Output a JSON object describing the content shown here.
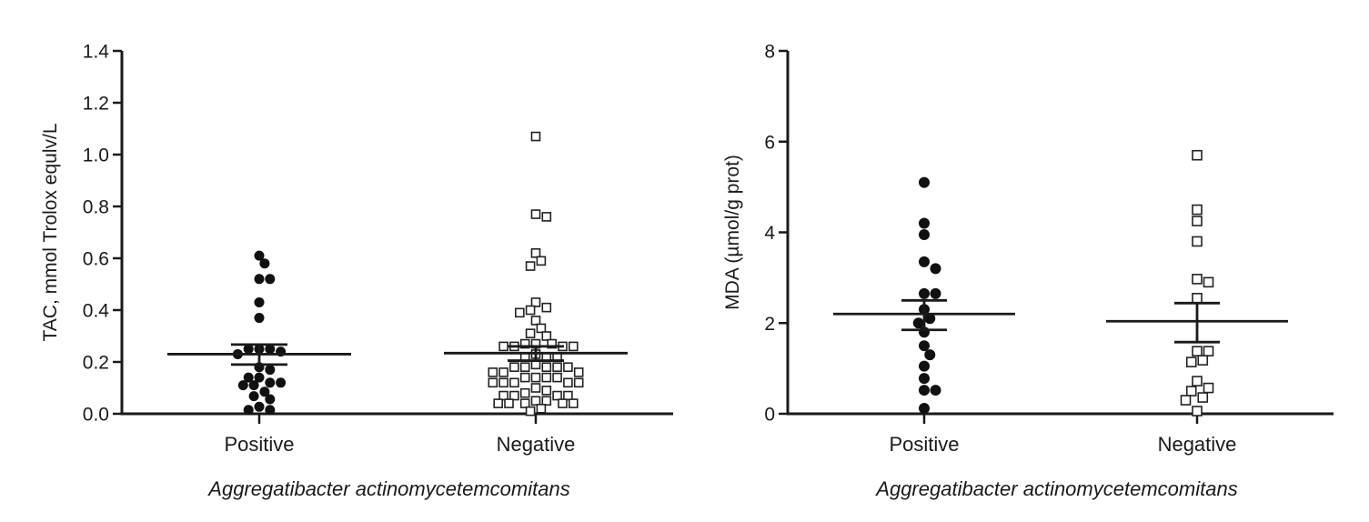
{
  "chart_data": [
    {
      "type": "scatter",
      "title": "",
      "xlabel": "Aggregatibacter actinomycetemcomitans",
      "ylabel": "TAC, mmol Trolox equlv/L",
      "ylim": [
        0,
        1.4
      ],
      "yticks": [
        "0.0",
        "0.2",
        "0.4",
        "0.6",
        "0.8",
        "1.0",
        "1.2",
        "1.4"
      ],
      "ytick_values": [
        0,
        0.2,
        0.4,
        0.6,
        0.8,
        1.0,
        1.2,
        1.4
      ],
      "categories": [
        "Positive",
        "Negative"
      ],
      "grid": false,
      "series": [
        {
          "name": "Positive",
          "marker": "filled-circle",
          "color": "#111111",
          "mean": 0.23,
          "sem_upper": 0.267,
          "sem_lower": 0.19,
          "values": [
            0.61,
            0.58,
            0.52,
            0.52,
            0.43,
            0.37,
            0.25,
            0.25,
            0.25,
            0.24,
            0.23,
            0.18,
            0.17,
            0.14,
            0.14,
            0.12,
            0.12,
            0.11,
            0.11,
            0.085,
            0.068,
            0.056,
            0.027,
            0.015,
            0.015
          ]
        },
        {
          "name": "Negative",
          "marker": "open-square",
          "color": "#222222",
          "mean": 0.234,
          "sem_upper": 0.26,
          "sem_lower": 0.205,
          "values": [
            1.07,
            0.77,
            0.76,
            0.62,
            0.59,
            0.57,
            0.43,
            0.41,
            0.4,
            0.39,
            0.36,
            0.33,
            0.31,
            0.3,
            0.27,
            0.27,
            0.27,
            0.26,
            0.26,
            0.26,
            0.26,
            0.23,
            0.22,
            0.22,
            0.22,
            0.19,
            0.18,
            0.18,
            0.18,
            0.18,
            0.18,
            0.16,
            0.16,
            0.16,
            0.14,
            0.14,
            0.14,
            0.14,
            0.12,
            0.12,
            0.12,
            0.12,
            0.12,
            0.1,
            0.09,
            0.08,
            0.07,
            0.07,
            0.07,
            0.07,
            0.05,
            0.05,
            0.04,
            0.04,
            0.04,
            0.04,
            0.04,
            0.02,
            0.01
          ]
        }
      ]
    },
    {
      "type": "scatter",
      "title": "",
      "xlabel": "Aggregatibacter actinomycetemcomitans",
      "ylabel": "MDA (µmol/g prot)",
      "ylim": [
        0,
        8
      ],
      "yticks": [
        "0",
        "2",
        "4",
        "6",
        "8"
      ],
      "ytick_values": [
        0,
        2,
        4,
        6,
        8
      ],
      "categories": [
        "Positive",
        "Negative"
      ],
      "grid": false,
      "series": [
        {
          "name": "Positive",
          "marker": "filled-circle",
          "color": "#111111",
          "mean": 2.2,
          "sem_upper": 2.5,
          "sem_lower": 1.85,
          "values": [
            5.1,
            4.2,
            3.95,
            3.35,
            3.2,
            2.65,
            2.65,
            2.3,
            2.1,
            2.0,
            1.8,
            1.5,
            1.3,
            1.05,
            0.78,
            0.52,
            0.52,
            0.12
          ]
        },
        {
          "name": "Negative",
          "marker": "open-square",
          "color": "#222222",
          "mean": 2.04,
          "sem_upper": 2.44,
          "sem_lower": 1.58,
          "values": [
            5.7,
            4.5,
            4.25,
            3.8,
            2.97,
            2.9,
            2.55,
            1.38,
            1.38,
            1.18,
            1.14,
            0.72,
            0.57,
            0.5,
            0.36,
            0.3,
            0.06
          ]
        }
      ]
    }
  ]
}
